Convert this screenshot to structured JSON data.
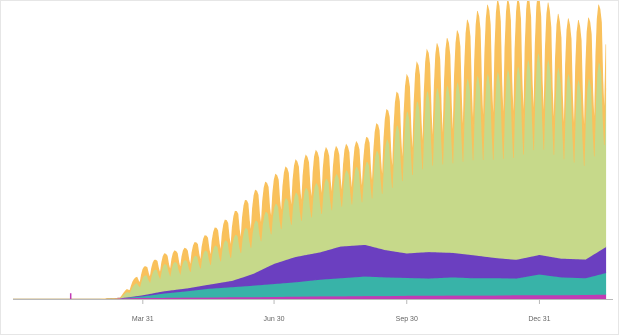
{
  "chart_data": {
    "type": "area",
    "stacked": true,
    "title": "",
    "xlabel": "",
    "ylabel": "",
    "grid": false,
    "legend": "none",
    "x_range": [
      "2020-01-01",
      "2021-02-20"
    ],
    "x_ticks": [
      {
        "date": "2020-03-31",
        "label": "Mar 31"
      },
      {
        "date": "2020-06-30",
        "label": "Jun 30"
      },
      {
        "date": "2020-09-30",
        "label": "Sep 30"
      },
      {
        "date": "2020-12-31",
        "label": "Dec 31"
      }
    ],
    "y_range": [
      0,
      100
    ],
    "weekly_oscillation": true,
    "dates": [
      "2020-01-01",
      "2020-02-01",
      "2020-02-20",
      "2020-03-01",
      "2020-03-15",
      "2020-03-31",
      "2020-04-15",
      "2020-05-01",
      "2020-05-15",
      "2020-06-01",
      "2020-06-15",
      "2020-06-30",
      "2020-07-15",
      "2020-08-01",
      "2020-08-15",
      "2020-09-01",
      "2020-09-15",
      "2020-09-30",
      "2020-10-15",
      "2020-11-01",
      "2020-11-15",
      "2020-12-01",
      "2020-12-15",
      "2020-12-31",
      "2021-01-15",
      "2021-02-01",
      "2021-02-15"
    ],
    "series": [
      {
        "color": "#c13bb5",
        "values": [
          0,
          0,
          0,
          0,
          0.3,
          0.5,
          0.5,
          0.6,
          0.6,
          0.7,
          0.7,
          0.8,
          0.9,
          1.0,
          1.0,
          1.1,
          1.1,
          1.2,
          1.2,
          1.3,
          1.3,
          1.3,
          1.4,
          1.4,
          1.4,
          1.5,
          1.6
        ]
      },
      {
        "color": "#38b3a8",
        "values": [
          0,
          0,
          0,
          0,
          0,
          0.5,
          1.5,
          2.2,
          3.0,
          3.5,
          4.0,
          4.5,
          5.0,
          5.8,
          6.3,
          6.8,
          6.5,
          6.2,
          6.0,
          6.3,
          6.0,
          6.0,
          5.8,
          7.2,
          6.2,
          5.8,
          7.5
        ]
      },
      {
        "color": "#6b3fc0",
        "values": [
          0,
          0,
          0,
          0,
          0,
          0.4,
          0.8,
          1.0,
          1.4,
          2.2,
          4.0,
          7.0,
          8.8,
          9.5,
          11.0,
          11.0,
          9.5,
          8.5,
          9.2,
          8.5,
          8.0,
          7.0,
          6.5,
          6.8,
          6.5,
          6.5,
          9.0
        ]
      },
      {
        "color": "#c6d98a",
        "values": [
          0,
          0,
          0,
          0,
          0,
          5.5,
          8.0,
          8.5,
          10.5,
          13.0,
          15.0,
          17.5,
          19.0,
          21.0,
          22.0,
          24.0,
          32.0,
          42.0,
          48.0,
          50.0,
          53.0,
          55.0,
          57.0,
          60.0,
          56.0,
          52.0,
          58.0
        ]
      },
      {
        "color": "#f9c15c",
        "values": [
          0,
          0,
          0,
          0,
          0,
          2.5,
          3.0,
          3.5,
          4.5,
          6.5,
          9.0,
          8.5,
          9.5,
          9.5,
          7.5,
          7.0,
          8.5,
          10.5,
          12.0,
          14.0,
          18.0,
          21.0,
          20.0,
          17.0,
          15.0,
          18.0,
          16.0
        ]
      }
    ],
    "spikes": [
      {
        "date": "2020-02-10",
        "value": 2.0,
        "color": "#c13bb5"
      }
    ]
  }
}
